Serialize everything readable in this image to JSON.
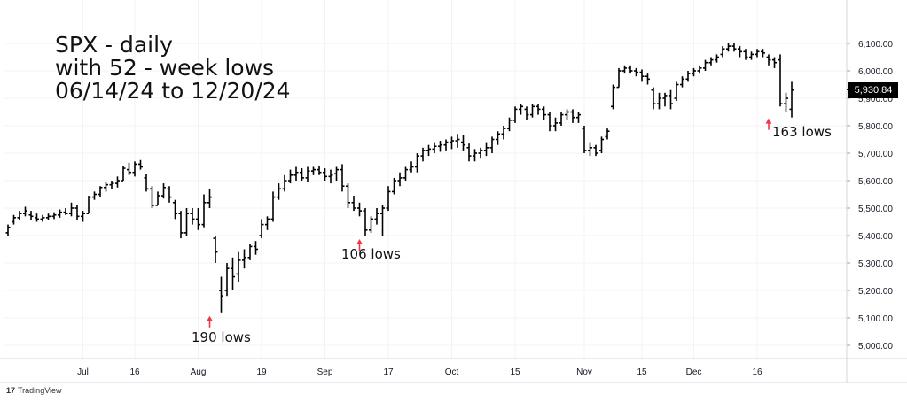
{
  "chart_data": {
    "type": "ohlc",
    "title_lines": [
      "SPX - daily",
      "with 52 - week lows",
      "06/14/24 to 12/20/24"
    ],
    "ylim": [
      4950,
      6150
    ],
    "y_ticks": [
      5000,
      5100,
      5200,
      5300,
      5400,
      5500,
      5600,
      5700,
      5800,
      5900,
      6000,
      6100
    ],
    "y_tick_labels": [
      "5,000.00",
      "5,100.00",
      "5,200.00",
      "5,300.00",
      "5,400.00",
      "5,500.00",
      "5,600.00",
      "5,700.00",
      "5,800.00",
      "5,900.00",
      "6,000.00",
      "6,100.00"
    ],
    "x_ticks": [
      {
        "index": 13,
        "label": "Jul"
      },
      {
        "index": 22,
        "label": "16"
      },
      {
        "index": 33,
        "label": "Aug"
      },
      {
        "index": 44,
        "label": "19"
      },
      {
        "index": 55,
        "label": "Sep"
      },
      {
        "index": 66,
        "label": "17"
      },
      {
        "index": 77,
        "label": "Oct"
      },
      {
        "index": 88,
        "label": "15"
      },
      {
        "index": 100,
        "label": "Nov"
      },
      {
        "index": 110,
        "label": "15"
      },
      {
        "index": 119,
        "label": "Dec"
      },
      {
        "index": 130,
        "label": "16"
      }
    ],
    "last_price_label": "5,930.84",
    "annotations": [
      {
        "text": "190 lows",
        "bar_index": 35,
        "value": 5120
      },
      {
        "text": "106 lows",
        "bar_index": 61,
        "value": 5400
      },
      {
        "text": "163 lows",
        "bar_index": 132,
        "value": 5840
      }
    ],
    "bars": [
      [
        5410,
        5440,
        5400,
        5430
      ],
      [
        5450,
        5475,
        5440,
        5465
      ],
      [
        5465,
        5490,
        5455,
        5480
      ],
      [
        5480,
        5505,
        5470,
        5490
      ],
      [
        5475,
        5490,
        5455,
        5470
      ],
      [
        5465,
        5480,
        5450,
        5460
      ],
      [
        5460,
        5475,
        5450,
        5465
      ],
      [
        5465,
        5480,
        5455,
        5470
      ],
      [
        5470,
        5485,
        5460,
        5475
      ],
      [
        5475,
        5495,
        5465,
        5485
      ],
      [
        5485,
        5500,
        5475,
        5480
      ],
      [
        5480,
        5520,
        5470,
        5500
      ],
      [
        5500,
        5510,
        5455,
        5470
      ],
      [
        5470,
        5490,
        5450,
        5480
      ],
      [
        5480,
        5545,
        5480,
        5540
      ],
      [
        5540,
        5560,
        5530,
        5550
      ],
      [
        5550,
        5580,
        5540,
        5575
      ],
      [
        5575,
        5595,
        5560,
        5585
      ],
      [
        5585,
        5600,
        5570,
        5590
      ],
      [
        5590,
        5615,
        5575,
        5600
      ],
      [
        5600,
        5655,
        5600,
        5645
      ],
      [
        5640,
        5665,
        5620,
        5630
      ],
      [
        5630,
        5670,
        5615,
        5660
      ],
      [
        5660,
        5675,
        5640,
        5650
      ],
      [
        5610,
        5625,
        5560,
        5570
      ],
      [
        5570,
        5580,
        5500,
        5510
      ],
      [
        5510,
        5560,
        5510,
        5545
      ],
      [
        5545,
        5590,
        5535,
        5575
      ],
      [
        5570,
        5580,
        5520,
        5540
      ],
      [
        5520,
        5530,
        5460,
        5480
      ],
      [
        5480,
        5490,
        5390,
        5410
      ],
      [
        5410,
        5500,
        5400,
        5480
      ],
      [
        5480,
        5500,
        5440,
        5460
      ],
      [
        5460,
        5500,
        5420,
        5440
      ],
      [
        5440,
        5550,
        5430,
        5520
      ],
      [
        5520,
        5570,
        5500,
        5540
      ],
      [
        5390,
        5400,
        5300,
        5340
      ],
      [
        5200,
        5250,
        5120,
        5180
      ],
      [
        5200,
        5300,
        5180,
        5280
      ],
      [
        5280,
        5320,
        5200,
        5250
      ],
      [
        5260,
        5340,
        5230,
        5310
      ],
      [
        5310,
        5350,
        5280,
        5320
      ],
      [
        5320,
        5370,
        5310,
        5360
      ],
      [
        5360,
        5380,
        5330,
        5350
      ],
      [
        5400,
        5460,
        5390,
        5440
      ],
      [
        5440,
        5470,
        5420,
        5460
      ],
      [
        5460,
        5560,
        5450,
        5540
      ],
      [
        5540,
        5590,
        5530,
        5570
      ],
      [
        5570,
        5620,
        5560,
        5600
      ],
      [
        5600,
        5640,
        5590,
        5620
      ],
      [
        5620,
        5650,
        5600,
        5630
      ],
      [
        5630,
        5645,
        5600,
        5610
      ],
      [
        5610,
        5650,
        5595,
        5635
      ],
      [
        5635,
        5650,
        5620,
        5640
      ],
      [
        5640,
        5655,
        5620,
        5630
      ],
      [
        5630,
        5645,
        5600,
        5615
      ],
      [
        5615,
        5640,
        5590,
        5620
      ],
      [
        5625,
        5650,
        5600,
        5640
      ],
      [
        5640,
        5660,
        5560,
        5580
      ],
      [
        5580,
        5590,
        5500,
        5520
      ],
      [
        5520,
        5545,
        5490,
        5500
      ],
      [
        5500,
        5520,
        5470,
        5490
      ],
      [
        5490,
        5500,
        5400,
        5420
      ],
      [
        5420,
        5470,
        5410,
        5460
      ],
      [
        5460,
        5500,
        5440,
        5480
      ],
      [
        5480,
        5510,
        5400,
        5500
      ],
      [
        5500,
        5580,
        5490,
        5560
      ],
      [
        5560,
        5610,
        5550,
        5600
      ],
      [
        5600,
        5630,
        5580,
        5610
      ],
      [
        5610,
        5650,
        5600,
        5640
      ],
      [
        5640,
        5670,
        5630,
        5650
      ],
      [
        5650,
        5700,
        5630,
        5690
      ],
      [
        5690,
        5720,
        5670,
        5710
      ],
      [
        5710,
        5730,
        5690,
        5715
      ],
      [
        5715,
        5740,
        5700,
        5725
      ],
      [
        5725,
        5745,
        5705,
        5730
      ],
      [
        5730,
        5750,
        5710,
        5740
      ],
      [
        5740,
        5760,
        5715,
        5745
      ],
      [
        5745,
        5770,
        5720,
        5750
      ],
      [
        5740,
        5765,
        5710,
        5730
      ],
      [
        5720,
        5735,
        5670,
        5690
      ],
      [
        5690,
        5715,
        5670,
        5700
      ],
      [
        5700,
        5720,
        5680,
        5710
      ],
      [
        5710,
        5740,
        5690,
        5720
      ],
      [
        5720,
        5760,
        5700,
        5750
      ],
      [
        5750,
        5780,
        5730,
        5770
      ],
      [
        5770,
        5800,
        5750,
        5790
      ],
      [
        5790,
        5830,
        5780,
        5820
      ],
      [
        5820,
        5870,
        5810,
        5860
      ],
      [
        5860,
        5880,
        5840,
        5870
      ],
      [
        5860,
        5870,
        5820,
        5840
      ],
      [
        5840,
        5880,
        5830,
        5870
      ],
      [
        5870,
        5880,
        5840,
        5860
      ],
      [
        5860,
        5870,
        5820,
        5840
      ],
      [
        5840,
        5850,
        5780,
        5800
      ],
      [
        5800,
        5830,
        5780,
        5810
      ],
      [
        5810,
        5850,
        5800,
        5840
      ],
      [
        5840,
        5860,
        5820,
        5850
      ],
      [
        5850,
        5860,
        5810,
        5830
      ],
      [
        5830,
        5850,
        5810,
        5840
      ],
      [
        5790,
        5800,
        5700,
        5710
      ],
      [
        5710,
        5740,
        5690,
        5720
      ],
      [
        5720,
        5730,
        5690,
        5700
      ],
      [
        5710,
        5760,
        5700,
        5750
      ],
      [
        5760,
        5790,
        5750,
        5780
      ],
      [
        5870,
        5950,
        5860,
        5940
      ],
      [
        5940,
        6010,
        5940,
        6000
      ],
      [
        6000,
        6020,
        5990,
        6010
      ],
      [
        6010,
        6020,
        5990,
        6000
      ],
      [
        6000,
        6010,
        5980,
        5995
      ],
      [
        5995,
        6005,
        5960,
        5980
      ],
      [
        5980,
        5990,
        5950,
        5970
      ],
      [
        5930,
        5940,
        5860,
        5880
      ],
      [
        5880,
        5920,
        5860,
        5900
      ],
      [
        5900,
        5920,
        5870,
        5910
      ],
      [
        5910,
        5930,
        5860,
        5880
      ],
      [
        5900,
        5960,
        5890,
        5950
      ],
      [
        5950,
        5980,
        5940,
        5970
      ],
      [
        5970,
        6000,
        5960,
        5990
      ],
      [
        5990,
        6010,
        5980,
        6000
      ],
      [
        6000,
        6020,
        5990,
        6010
      ],
      [
        6010,
        6040,
        6000,
        6030
      ],
      [
        6030,
        6050,
        6020,
        6040
      ],
      [
        6040,
        6060,
        6030,
        6050
      ],
      [
        6060,
        6090,
        6050,
        6080
      ],
      [
        6080,
        6100,
        6070,
        6090
      ],
      [
        6090,
        6100,
        6070,
        6080
      ],
      [
        6080,
        6090,
        6050,
        6070
      ],
      [
        6070,
        6080,
        6040,
        6050
      ],
      [
        6050,
        6070,
        6040,
        6060
      ],
      [
        6060,
        6080,
        6050,
        6070
      ],
      [
        6070,
        6080,
        6050,
        6065
      ],
      [
        6050,
        6060,
        6020,
        6040
      ],
      [
        6040,
        6050,
        6010,
        6030
      ],
      [
        6040,
        6060,
        5870,
        5880
      ],
      [
        5880,
        5920,
        5850,
        5900
      ],
      [
        5860,
        5960,
        5830,
        5930
      ]
    ]
  },
  "brand": {
    "icon": "17",
    "text": "TradingView"
  }
}
